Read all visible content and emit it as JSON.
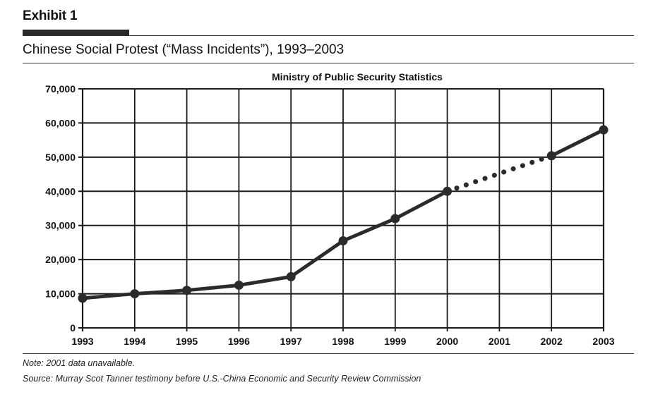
{
  "header": {
    "exhibit_label": "Exhibit 1",
    "subtitle": "Chinese Social Protest (“Mass Incidents”), 1993–2003"
  },
  "footer": {
    "note": "Note: 2001 data unavailable.",
    "source": "Source: Murray Scot Tanner testimony before U.S.-China Economic and Security Review Commission"
  },
  "chart_data": {
    "type": "line",
    "title": "Ministry of Public Security Statistics",
    "xlabel": "",
    "ylabel": "",
    "categories": [
      "1993",
      "1994",
      "1995",
      "1996",
      "1997",
      "1998",
      "1999",
      "2000",
      "2001",
      "2002",
      "2003"
    ],
    "series": [
      {
        "name": "Mass incidents",
        "values": [
          8700,
          10000,
          11000,
          12500,
          15000,
          25500,
          32000,
          40000,
          null,
          50400,
          58000
        ],
        "gap_style": "dotted"
      }
    ],
    "ylim": [
      0,
      70000
    ],
    "yticks": [
      0,
      10000,
      20000,
      30000,
      40000,
      50000,
      60000,
      70000
    ],
    "ytick_labels": [
      "0",
      "10,000",
      "20,000",
      "30,000",
      "40,000",
      "50,000",
      "60,000",
      "70,000"
    ],
    "grid": true,
    "legend": "none",
    "colors": {
      "line": "#2b2b2b",
      "grid": "#1a1a1a"
    }
  }
}
